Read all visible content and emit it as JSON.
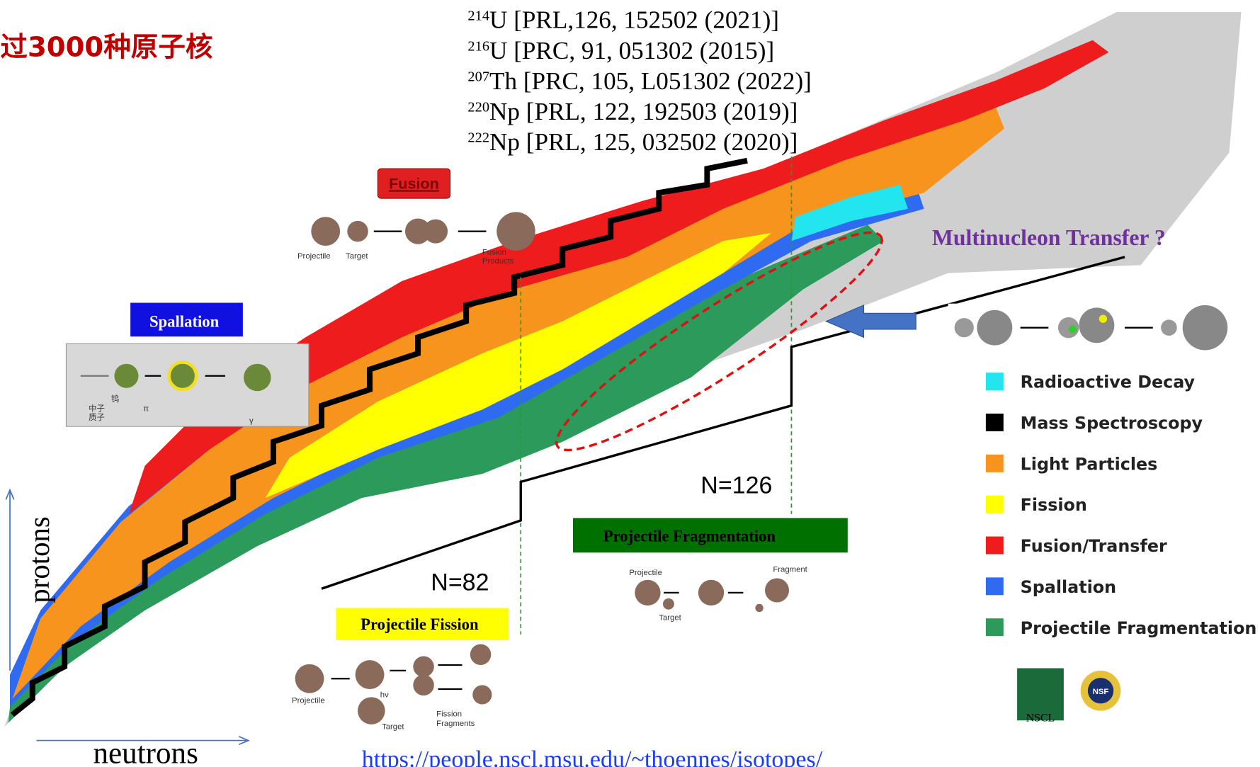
{
  "title": "过3000种原子核",
  "references": [
    {
      "mass": "214",
      "text": "U [PRL,126, 152502 (2021)]"
    },
    {
      "mass": "216",
      "text": "U [PRC, 91, 051302 (2015)]"
    },
    {
      "mass": "207",
      "text": "Th [PRC, 105, L051302 (2022)]"
    },
    {
      "mass": "220",
      "text": "Np [PRL, 122, 192503 (2019)]"
    },
    {
      "mass": "222",
      "text": "Np [PRL, 125, 032502 (2020)]"
    }
  ],
  "reactions": {
    "fusion": {
      "label": "Fusion",
      "projectile": "Projectile",
      "target": "Target",
      "products": [
        "Fusion",
        "Products"
      ]
    },
    "spallation": {
      "label": "Spallation",
      "target": "钨",
      "neutron": "中子",
      "proton": "质子",
      "pion": "π",
      "gamma": "γ"
    },
    "fission": {
      "label": "Projectile Fission",
      "projectile": "Projectile",
      "photon": "hν",
      "target": "Target",
      "fragments": [
        "Fission",
        "Fragments"
      ]
    },
    "fragmentation": {
      "label": "Projectile Fragmentation",
      "projectile": "Projectile",
      "fragment": "Fragment",
      "target": "Target"
    },
    "multinucleon": "Multinucleon Transfer ?"
  },
  "magic": {
    "n126": "N=126",
    "n82": "N=82"
  },
  "legend": [
    {
      "label": "Radioactive Decay",
      "color": "#22e5f0"
    },
    {
      "label": "Mass Spectroscopy",
      "color": "#000000"
    },
    {
      "label": "Light Particles",
      "color": "#f7941d"
    },
    {
      "label": "Fission",
      "color": "#ffff00"
    },
    {
      "label": "Fusion/Transfer",
      "color": "#ee1c1c"
    },
    {
      "label": "Spallation",
      "color": "#2e6bf0"
    },
    {
      "label": "Projectile Fragmentation",
      "color": "#2b9a5a"
    }
  ],
  "axes": {
    "y": "protons",
    "x": "neutrons"
  },
  "source": "https://people.nscl.msu.edu/~thoennes/isotopes/",
  "logos": {
    "nscl": "NSCL",
    "nsf": "NSF"
  }
}
